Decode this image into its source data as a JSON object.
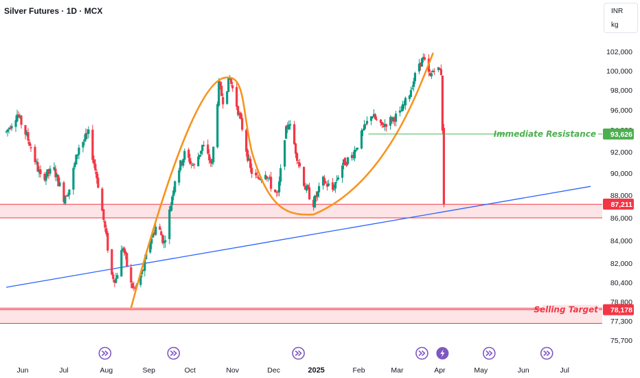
{
  "header": {
    "title": "Silver Futures · 1D · MCX",
    "currency": "INR",
    "unit": "kg"
  },
  "colors": {
    "up": "#089981",
    "down": "#f23645",
    "trendline": "#2962ff",
    "cup_curve": "#f7941d",
    "resistance": "#4caf50",
    "target": "#f23645",
    "zone_fill": "#fde4e6",
    "event_icon": "#7e57c2"
  },
  "chart_data": {
    "type": "candlestick",
    "title": "Silver Futures · 1D · MCX",
    "y_tick_labels": [
      "102,000",
      "100,000",
      "98,000",
      "96,000",
      "94,000",
      "92,000",
      "90,000",
      "88,000",
      "86,000",
      "84,000",
      "82,000",
      "80,400",
      "78,800",
      "77,300",
      "75,700"
    ],
    "x_tick_labels": [
      "Jun",
      "Jul",
      "Aug",
      "Sep",
      "Oct",
      "Nov",
      "Dec",
      "2025",
      "Feb",
      "Mar",
      "Apr",
      "May",
      "Jun",
      "Jul"
    ],
    "price_tags": [
      {
        "label": "93,626",
        "value": 93626,
        "color": "#4caf50"
      },
      {
        "label": "87,211",
        "value": 87211,
        "color": "#f23645"
      },
      {
        "label": "78,178",
        "value": 78178,
        "color": "#f23645"
      }
    ],
    "annotations": {
      "resistance_label": "Immediate Resistance",
      "resistance_value": 93626,
      "target_label": "Selling Target",
      "target_value": 78178
    },
    "zones": [
      {
        "name": "support",
        "from": 86000,
        "to": 87200
      },
      {
        "name": "target",
        "from": 77100,
        "to": 78300
      }
    ],
    "trendline": {
      "from": {
        "date": "2024-05-20",
        "value": 80000
      },
      "to": {
        "date": "2025-07-20",
        "value": 88800
      }
    },
    "events": [
      {
        "date": "2024-07-31",
        "kind": "fast-forward"
      },
      {
        "date": "2024-09-19",
        "kind": "fast-forward"
      },
      {
        "date": "2024-12-19",
        "kind": "fast-forward"
      },
      {
        "date": "2025-03-19",
        "kind": "fast-forward"
      },
      {
        "date": "2025-04-03",
        "kind": "lightning"
      },
      {
        "date": "2025-05-07",
        "kind": "fast-forward"
      },
      {
        "date": "2025-06-18",
        "kind": "fast-forward"
      }
    ],
    "anchors": [
      [
        "2024-05-20",
        93800
      ],
      [
        "2024-05-28",
        95600
      ],
      [
        "2024-06-06",
        92800
      ],
      [
        "2024-06-14",
        89600
      ],
      [
        "2024-06-24",
        90300
      ],
      [
        "2024-07-01",
        87800
      ],
      [
        "2024-07-05",
        88600
      ],
      [
        "2024-07-12",
        92500
      ],
      [
        "2024-07-19",
        93600
      ],
      [
        "2024-07-26",
        89000
      ],
      [
        "2024-08-05",
        81000
      ],
      [
        "2024-08-08",
        80700
      ],
      [
        "2024-08-13",
        83500
      ],
      [
        "2024-08-19",
        80200
      ],
      [
        "2024-08-22",
        79800
      ],
      [
        "2024-08-28",
        81500
      ],
      [
        "2024-09-02",
        84000
      ],
      [
        "2024-09-07",
        85500
      ],
      [
        "2024-09-12",
        83800
      ],
      [
        "2024-09-16",
        86500
      ],
      [
        "2024-09-20",
        89500
      ],
      [
        "2024-09-27",
        91800
      ],
      [
        "2024-10-04",
        90600
      ],
      [
        "2024-10-10",
        92600
      ],
      [
        "2024-10-17",
        90800
      ],
      [
        "2024-10-22",
        98500
      ],
      [
        "2024-10-25",
        97000
      ],
      [
        "2024-10-30",
        99200
      ],
      [
        "2024-11-04",
        96500
      ],
      [
        "2024-11-08",
        94200
      ],
      [
        "2024-11-14",
        90300
      ],
      [
        "2024-11-19",
        89400
      ],
      [
        "2024-11-25",
        90200
      ],
      [
        "2024-11-29",
        88900
      ],
      [
        "2024-12-04",
        87900
      ],
      [
        "2024-12-09",
        93500
      ],
      [
        "2024-12-12",
        94800
      ],
      [
        "2024-12-18",
        91600
      ],
      [
        "2024-12-24",
        88700
      ],
      [
        "2024-12-30",
        87300
      ],
      [
        "2025-01-06",
        89300
      ],
      [
        "2025-01-13",
        88500
      ],
      [
        "2025-01-20",
        90800
      ],
      [
        "2025-01-27",
        91600
      ],
      [
        "2025-02-04",
        93800
      ],
      [
        "2025-02-10",
        95600
      ],
      [
        "2025-02-17",
        94300
      ],
      [
        "2025-02-24",
        95000
      ],
      [
        "2025-03-03",
        95600
      ],
      [
        "2025-03-10",
        97700
      ],
      [
        "2025-03-17",
        100800
      ],
      [
        "2025-03-20",
        101200
      ],
      [
        "2025-03-25",
        99300
      ],
      [
        "2025-03-28",
        100400
      ],
      [
        "2025-04-01",
        100000
      ],
      [
        "2025-04-02",
        99800
      ],
      [
        "2025-04-03",
        94200
      ],
      [
        "2025-04-04",
        87400
      ]
    ]
  }
}
